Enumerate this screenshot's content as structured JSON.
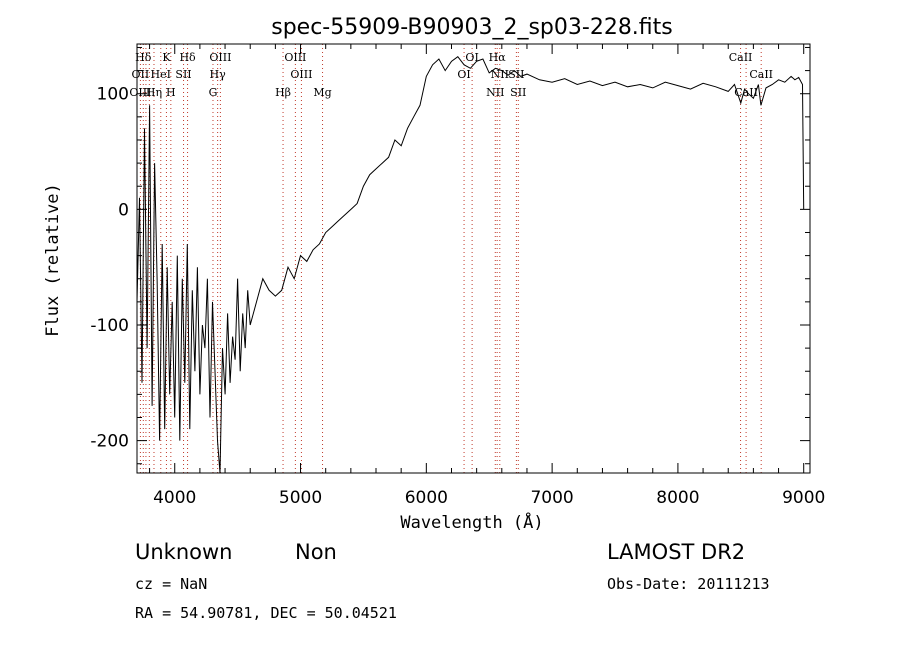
{
  "chart_data": {
    "type": "line",
    "title": "spec-55909-B90903_2_sp03-228.fits",
    "xlabel": "Wavelength (Å)",
    "ylabel": "Flux (relative)",
    "xlim": [
      3700,
      9050
    ],
    "ylim": [
      -228,
      143
    ],
    "xticks": [
      4000,
      5000,
      6000,
      7000,
      8000,
      9000
    ],
    "yticks": [
      -200,
      -100,
      0,
      100
    ],
    "grid": false,
    "series": [
      {
        "x": [
          3700,
          3720,
          3740,
          3760,
          3780,
          3800,
          3820,
          3840,
          3860,
          3880,
          3900,
          3920,
          3940,
          3960,
          3980,
          4000,
          4020,
          4040,
          4060,
          4080,
          4100,
          4120,
          4140,
          4160,
          4180,
          4200,
          4220,
          4240,
          4260,
          4280,
          4300,
          4320,
          4340,
          4360,
          4380,
          4400,
          4420,
          4440,
          4460,
          4480,
          4500,
          4520,
          4540,
          4560,
          4580,
          4600,
          4650,
          4700,
          4750,
          4800,
          4850,
          4900,
          4950,
          5000,
          5050,
          5100,
          5150,
          5200,
          5250,
          5300,
          5350,
          5400,
          5450,
          5500,
          5550,
          5600,
          5650,
          5700,
          5750,
          5800,
          5850,
          5900,
          5950,
          6000,
          6050,
          6100,
          6150,
          6200,
          6250,
          6300,
          6350,
          6400,
          6450,
          6500,
          6550,
          6600,
          6650,
          6700,
          6750,
          6800,
          6900,
          7000,
          7100,
          7200,
          7300,
          7400,
          7500,
          7600,
          7700,
          7800,
          7900,
          8000,
          8100,
          8200,
          8300,
          8400,
          8450,
          8500,
          8530,
          8560,
          8600,
          8640,
          8660,
          8700,
          8750,
          8800,
          8850,
          8900,
          8930,
          8960,
          8990,
          9000
        ],
        "y": [
          -80,
          10,
          -150,
          70,
          -120,
          90,
          -170,
          40,
          -60,
          -200,
          -30,
          -190,
          -50,
          -160,
          -80,
          -180,
          -40,
          -200,
          -60,
          -150,
          -30,
          -190,
          -70,
          -140,
          -50,
          -160,
          -100,
          -120,
          -60,
          -180,
          -80,
          -140,
          -200,
          -228,
          -120,
          -160,
          -90,
          -150,
          -110,
          -130,
          -60,
          -140,
          -90,
          -120,
          -70,
          -100,
          -80,
          -60,
          -70,
          -75,
          -70,
          -50,
          -60,
          -40,
          -45,
          -35,
          -30,
          -20,
          -15,
          -10,
          -5,
          0,
          5,
          20,
          30,
          35,
          40,
          45,
          60,
          55,
          70,
          80,
          90,
          115,
          125,
          130,
          120,
          128,
          132,
          125,
          122,
          128,
          130,
          118,
          122,
          120,
          116,
          120,
          115,
          117,
          112,
          110,
          113,
          108,
          111,
          107,
          110,
          106,
          108,
          105,
          110,
          107,
          104,
          109,
          106,
          102,
          108,
          92,
          104,
          100,
          96,
          108,
          90,
          105,
          108,
          112,
          110,
          115,
          112,
          114,
          108,
          0
        ]
      }
    ],
    "spectral_lines": [
      {
        "label": "Hδ",
        "x": 3750,
        "row": 0
      },
      {
        "label": "K",
        "x": 3934,
        "row": 0
      },
      {
        "label": "Hδ",
        "x": 4102,
        "row": 0
      },
      {
        "label": "OIII",
        "x": 4363,
        "row": 0
      },
      {
        "label": "OIII",
        "x": 4959,
        "row": 0
      },
      {
        "label": "OI",
        "x": 6364,
        "row": 0
      },
      {
        "label": "Hα",
        "x": 6563,
        "row": 0
      },
      {
        "label": "CaII",
        "x": 8498,
        "row": 0
      },
      {
        "label": "OII",
        "x": 3727,
        "row": 1
      },
      {
        "label": "HeI",
        "x": 3889,
        "row": 1
      },
      {
        "label": "SII",
        "x": 4070,
        "row": 1
      },
      {
        "label": "Hγ",
        "x": 4341,
        "row": 1
      },
      {
        "label": "OIII",
        "x": 5007,
        "row": 1
      },
      {
        "label": "OI",
        "x": 6300,
        "row": 1
      },
      {
        "label": "NII",
        "x": 6584,
        "row": 1
      },
      {
        "label": "SII",
        "x": 6716,
        "row": 1
      },
      {
        "label": "CaII",
        "x": 8662,
        "row": 1
      },
      {
        "label": "OIII",
        "x": 3727,
        "row": 2
      },
      {
        "label": "Hη",
        "x": 3835,
        "row": 2
      },
      {
        "label": "H",
        "x": 3969,
        "row": 2
      },
      {
        "label": "G",
        "x": 4304,
        "row": 2
      },
      {
        "label": "Hβ",
        "x": 4861,
        "row": 2
      },
      {
        "label": "Mg",
        "x": 5175,
        "row": 2
      },
      {
        "label": "NII",
        "x": 6548,
        "row": 2
      },
      {
        "label": "SII",
        "x": 6731,
        "row": 2
      },
      {
        "label": "CaII",
        "x": 8542,
        "row": 2
      }
    ],
    "dotted_markers": [
      3727,
      3750,
      3771,
      3798,
      3835,
      3889,
      3934,
      3969,
      4070,
      4102,
      4304,
      4341,
      4363,
      4861,
      4959,
      5007,
      5175,
      6300,
      6364,
      6548,
      6563,
      6584,
      6716,
      6731,
      8498,
      8542,
      8662
    ]
  },
  "info": {
    "class": "Unknown",
    "subclass": "Non",
    "survey": "LAMOST DR2",
    "cz": "cz = NaN",
    "obs_date": "Obs-Date: 20111213",
    "coords": "RA =  54.90781, DEC =  50.04521"
  }
}
